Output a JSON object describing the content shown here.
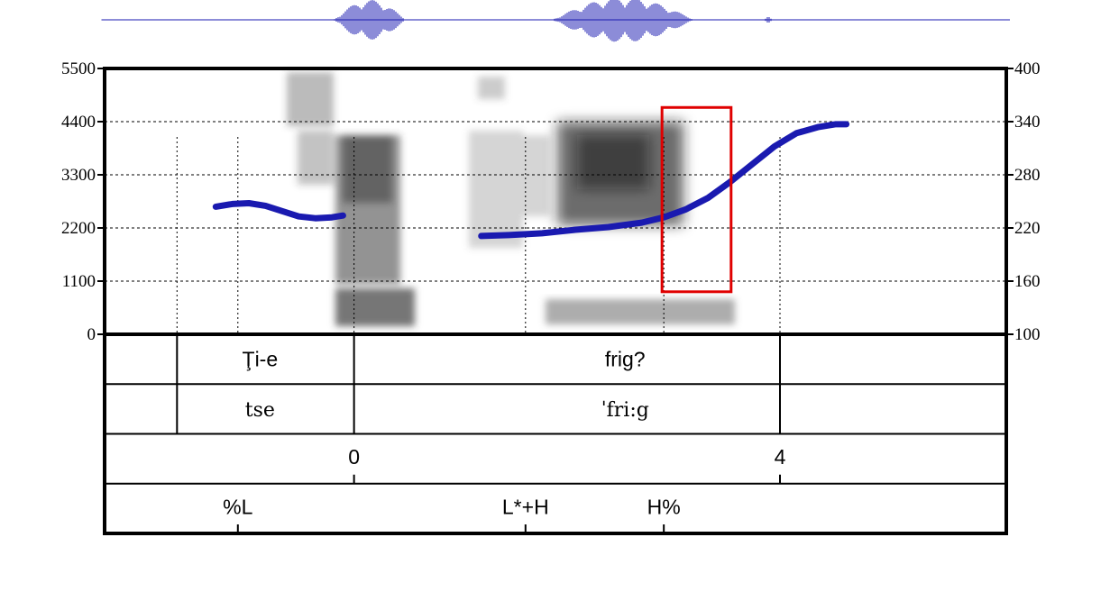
{
  "chart_data": {
    "type": "line",
    "subtype": "praat-spectrogram-with-pitch-track",
    "title": "",
    "xlabel": "",
    "ylabel": "",
    "y_left": {
      "ylim": [
        0,
        5500
      ],
      "ticks": [
        0,
        1100,
        2200,
        3300,
        4400,
        5500
      ]
    },
    "y_right": {
      "ylim": [
        100,
        400
      ],
      "ticks": [
        100,
        160,
        220,
        280,
        340,
        400
      ]
    },
    "grid": true,
    "series": [
      {
        "color": "#1a1ab0",
        "segments": [
          [
            [
              0.39,
              244
            ],
            [
              0.42,
              247
            ],
            [
              0.45,
              248
            ],
            [
              0.48,
              245
            ],
            [
              0.51,
              239
            ],
            [
              0.54,
              233
            ],
            [
              0.57,
              231
            ],
            [
              0.6,
              232
            ],
            [
              0.62,
              234
            ]
          ],
          [
            [
              0.87,
              211
            ],
            [
              0.92,
              212
            ],
            [
              0.98,
              214
            ],
            [
              1.04,
              218
            ],
            [
              1.1,
              221
            ],
            [
              1.16,
              226
            ],
            [
              1.2,
              232
            ],
            [
              1.24,
              241
            ],
            [
              1.28,
              254
            ],
            [
              1.32,
              272
            ],
            [
              1.36,
              292
            ],
            [
              1.4,
              312
            ],
            [
              1.44,
              327
            ],
            [
              1.48,
              334
            ],
            [
              1.51,
              337
            ],
            [
              1.53,
              337
            ]
          ]
        ]
      }
    ],
    "tiers": [
      {
        "name": "",
        "intervals": [
          {
            "label": "Ţi-e",
            "x": 0.47
          },
          {
            "label": "frig?",
            "x": 1.13
          }
        ],
        "boundaries": [
          0.32,
          0.64,
          1.41
        ]
      },
      {
        "name": "",
        "intervals": [
          {
            "label": "tse",
            "x": 0.47
          },
          {
            "label": "ˈfri:g",
            "x": 1.13
          }
        ],
        "boundaries": [
          0.32,
          0.64,
          1.41
        ]
      },
      {
        "name": "",
        "points": [
          {
            "label": "0",
            "x": 0.64
          },
          {
            "label": "4",
            "x": 1.41
          }
        ]
      },
      {
        "name": "",
        "points": [
          {
            "label": "%L",
            "x": 0.43
          },
          {
            "label": "L*+H",
            "x": 0.95
          },
          {
            "label": "H%",
            "x": 1.2
          }
        ]
      }
    ],
    "highlight_box": {
      "color": "#e00000",
      "x_range": [
        1.2,
        1.32
      ],
      "y_right_range": [
        148,
        356
      ]
    }
  }
}
